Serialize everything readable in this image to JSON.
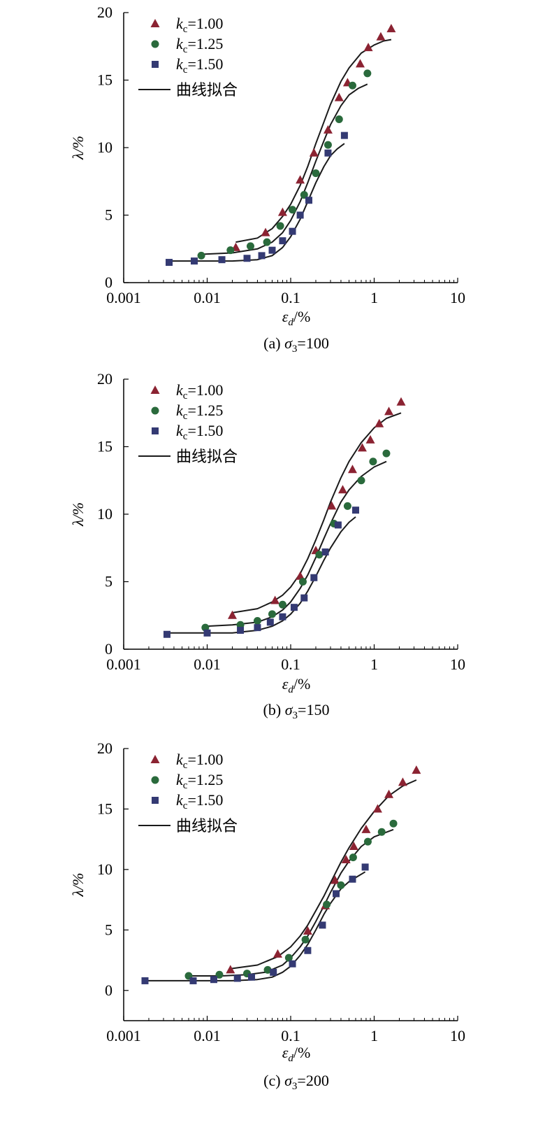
{
  "colors": {
    "series_1": "#8b2332",
    "series_2": "#2a6a3c",
    "series_3": "#343a73",
    "fit": "#1a1a1a",
    "axis": "#000000"
  },
  "chart_data": [
    {
      "type": "scatter",
      "panel": "(a)",
      "caption": {
        "prefix": "(a) ",
        "symbol": "σ",
        "sub": "3",
        "suffix": "=100"
      },
      "xlabel": {
        "symbol": "ε",
        "sub": "d",
        "unit": "/%"
      },
      "ylabel": "λ/%",
      "xscale": "log",
      "xlim": [
        0.001,
        10
      ],
      "ylim": [
        0,
        20
      ],
      "xticks": [
        "0.001",
        "0.01",
        "0.1",
        "1",
        "10"
      ],
      "yticks": [
        "0",
        "5",
        "10",
        "15",
        "20"
      ],
      "legend_placement": "top-left",
      "series": [
        {
          "name": "1.00",
          "marker": "triangle",
          "x": [
            0.022,
            0.05,
            0.08,
            0.13,
            0.19,
            0.28,
            0.38,
            0.48,
            0.68,
            0.85,
            1.2,
            1.6
          ],
          "y": [
            2.6,
            3.7,
            5.2,
            7.6,
            9.6,
            11.3,
            13.7,
            14.8,
            16.2,
            17.4,
            18.2,
            18.8
          ]
        },
        {
          "name": "1.25",
          "marker": "circle",
          "x": [
            0.0085,
            0.019,
            0.033,
            0.052,
            0.075,
            0.105,
            0.145,
            0.2,
            0.28,
            0.38,
            0.55,
            0.83
          ],
          "y": [
            2.0,
            2.4,
            2.7,
            3.0,
            4.2,
            5.4,
            6.5,
            8.1,
            10.2,
            12.1,
            14.6,
            15.5
          ]
        },
        {
          "name": "1.50",
          "marker": "square",
          "x": [
            0.0035,
            0.007,
            0.015,
            0.03,
            0.045,
            0.06,
            0.08,
            0.105,
            0.13,
            0.165,
            0.28,
            0.44
          ],
          "y": [
            1.5,
            1.6,
            1.7,
            1.8,
            2.0,
            2.4,
            3.1,
            3.8,
            5.0,
            6.1,
            9.6,
            10.9
          ]
        }
      ],
      "fits": [
        {
          "series": "1.00",
          "x": [
            0.022,
            0.04,
            0.06,
            0.08,
            0.1,
            0.13,
            0.16,
            0.2,
            0.25,
            0.3,
            0.4,
            0.5,
            0.7,
            1.0,
            1.3,
            1.6
          ],
          "y": [
            3.0,
            3.3,
            4.0,
            4.9,
            5.8,
            7.2,
            8.6,
            10.3,
            11.9,
            13.2,
            14.9,
            15.9,
            17.0,
            17.6,
            17.9,
            18.0
          ]
        },
        {
          "series": "1.25",
          "x": [
            0.0085,
            0.02,
            0.04,
            0.06,
            0.08,
            0.1,
            0.13,
            0.16,
            0.2,
            0.25,
            0.3,
            0.4,
            0.5,
            0.65,
            0.83
          ],
          "y": [
            2.1,
            2.2,
            2.5,
            3.0,
            3.7,
            4.6,
            6.0,
            7.4,
            9.0,
            10.5,
            11.7,
            13.1,
            13.9,
            14.4,
            14.7
          ]
        },
        {
          "series": "1.50",
          "x": [
            0.0035,
            0.01,
            0.02,
            0.04,
            0.06,
            0.08,
            0.1,
            0.13,
            0.16,
            0.2,
            0.25,
            0.3,
            0.36,
            0.44
          ],
          "y": [
            1.6,
            1.6,
            1.6,
            1.7,
            2.0,
            2.6,
            3.4,
            4.7,
            6.0,
            7.4,
            8.6,
            9.4,
            9.9,
            10.3
          ]
        }
      ]
    },
    {
      "type": "scatter",
      "panel": "(b)",
      "caption": {
        "prefix": "(b) ",
        "symbol": "σ",
        "sub": "3",
        "suffix": "=150"
      },
      "xlabel": {
        "symbol": "ε",
        "sub": "d",
        "unit": "/%"
      },
      "ylabel": "λ/%",
      "xscale": "log",
      "xlim": [
        0.001,
        10
      ],
      "ylim": [
        0,
        20
      ],
      "xticks": [
        "0.001",
        "0.01",
        "0.1",
        "1",
        "10"
      ],
      "yticks": [
        "0",
        "5",
        "10",
        "15",
        "20"
      ],
      "legend_placement": "top-left",
      "series": [
        {
          "name": "1.00",
          "marker": "triangle",
          "x": [
            0.02,
            0.065,
            0.13,
            0.2,
            0.31,
            0.42,
            0.55,
            0.72,
            0.9,
            1.15,
            1.5,
            2.1
          ],
          "y": [
            2.5,
            3.6,
            5.4,
            7.3,
            10.6,
            11.8,
            13.3,
            14.9,
            15.5,
            16.7,
            17.6,
            18.3
          ]
        },
        {
          "name": "1.25",
          "marker": "circle",
          "x": [
            0.0095,
            0.025,
            0.04,
            0.06,
            0.08,
            0.14,
            0.22,
            0.33,
            0.48,
            0.7,
            0.97,
            1.4
          ],
          "y": [
            1.6,
            1.8,
            2.1,
            2.6,
            3.3,
            5.0,
            7.0,
            9.3,
            10.6,
            12.5,
            13.9,
            14.5
          ]
        },
        {
          "name": "1.50",
          "marker": "square",
          "x": [
            0.0033,
            0.01,
            0.025,
            0.04,
            0.057,
            0.08,
            0.11,
            0.145,
            0.19,
            0.26,
            0.37,
            0.6
          ],
          "y": [
            1.1,
            1.2,
            1.4,
            1.6,
            2.0,
            2.4,
            3.1,
            3.8,
            5.3,
            7.2,
            9.2,
            10.3
          ]
        }
      ],
      "fits": [
        {
          "series": "1.00",
          "x": [
            0.02,
            0.04,
            0.06,
            0.08,
            0.1,
            0.13,
            0.16,
            0.2,
            0.25,
            0.3,
            0.4,
            0.5,
            0.7,
            1.0,
            1.4,
            2.1
          ],
          "y": [
            2.7,
            3.0,
            3.5,
            4.0,
            4.6,
            5.6,
            6.7,
            8.1,
            9.6,
            10.9,
            12.7,
            13.9,
            15.3,
            16.4,
            17.1,
            17.5
          ]
        },
        {
          "series": "1.25",
          "x": [
            0.0095,
            0.02,
            0.04,
            0.06,
            0.08,
            0.1,
            0.13,
            0.16,
            0.2,
            0.25,
            0.3,
            0.4,
            0.5,
            0.7,
            1.0,
            1.4
          ],
          "y": [
            1.7,
            1.8,
            2.0,
            2.4,
            2.9,
            3.5,
            4.5,
            5.5,
            6.8,
            8.2,
            9.3,
            10.9,
            11.8,
            12.8,
            13.5,
            13.9
          ]
        },
        {
          "series": "1.50",
          "x": [
            0.0033,
            0.01,
            0.02,
            0.04,
            0.06,
            0.08,
            0.1,
            0.13,
            0.16,
            0.2,
            0.25,
            0.3,
            0.4,
            0.5,
            0.6
          ],
          "y": [
            1.2,
            1.2,
            1.2,
            1.4,
            1.7,
            2.1,
            2.6,
            3.4,
            4.3,
            5.4,
            6.6,
            7.5,
            8.7,
            9.4,
            9.8
          ]
        }
      ]
    },
    {
      "type": "scatter",
      "panel": "(c)",
      "caption": {
        "prefix": "(c) ",
        "symbol": "σ",
        "sub": "3",
        "suffix": "=200"
      },
      "xlabel": {
        "symbol": "ε",
        "sub": "d",
        "unit": "/%"
      },
      "ylabel": "λ/%",
      "xscale": "log",
      "xlim": [
        0.001,
        10
      ],
      "ylim": [
        -2.5,
        20
      ],
      "xticks": [
        "0.001",
        "0.01",
        "0.1",
        "1",
        "10"
      ],
      "yticks": [
        "0",
        "5",
        "10",
        "15",
        "20"
      ],
      "legend_placement": "top-left",
      "series": [
        {
          "name": "1.00",
          "marker": "triangle",
          "x": [
            0.019,
            0.07,
            0.16,
            0.26,
            0.34,
            0.46,
            0.57,
            0.8,
            1.1,
            1.5,
            2.2,
            3.2
          ],
          "y": [
            1.7,
            3.0,
            4.9,
            7.0,
            9.1,
            10.8,
            11.9,
            13.3,
            15.0,
            16.2,
            17.2,
            18.2
          ]
        },
        {
          "name": "1.25",
          "marker": "circle",
          "x": [
            0.006,
            0.014,
            0.03,
            0.053,
            0.095,
            0.15,
            0.27,
            0.4,
            0.56,
            0.84,
            1.23,
            1.7
          ],
          "y": [
            1.2,
            1.3,
            1.4,
            1.7,
            2.7,
            4.2,
            7.1,
            8.7,
            11.0,
            12.3,
            13.1,
            13.8
          ]
        },
        {
          "name": "1.50",
          "marker": "square",
          "x": [
            0.0018,
            0.0068,
            0.012,
            0.023,
            0.034,
            0.062,
            0.105,
            0.16,
            0.24,
            0.35,
            0.55,
            0.78
          ],
          "y": [
            0.8,
            0.8,
            0.9,
            1.0,
            1.1,
            1.5,
            2.2,
            3.3,
            5.4,
            8.0,
            9.2,
            10.2
          ]
        }
      ],
      "fits": [
        {
          "series": "1.00",
          "x": [
            0.019,
            0.04,
            0.07,
            0.1,
            0.13,
            0.16,
            0.2,
            0.25,
            0.3,
            0.4,
            0.5,
            0.7,
            1.0,
            1.5,
            2.2,
            3.2
          ],
          "y": [
            1.8,
            2.1,
            2.8,
            3.6,
            4.5,
            5.4,
            6.6,
            7.8,
            8.9,
            10.6,
            11.8,
            13.4,
            14.8,
            16.1,
            16.9,
            17.4
          ]
        },
        {
          "series": "1.25",
          "x": [
            0.006,
            0.015,
            0.03,
            0.05,
            0.08,
            0.1,
            0.13,
            0.16,
            0.2,
            0.25,
            0.3,
            0.4,
            0.5,
            0.7,
            1.0,
            1.7
          ],
          "y": [
            1.2,
            1.2,
            1.3,
            1.5,
            2.1,
            2.7,
            3.6,
            4.5,
            5.7,
            7.0,
            8.1,
            9.7,
            10.7,
            11.9,
            12.7,
            13.3
          ]
        },
        {
          "series": "1.50",
          "x": [
            0.0018,
            0.005,
            0.01,
            0.02,
            0.04,
            0.06,
            0.08,
            0.1,
            0.13,
            0.16,
            0.2,
            0.25,
            0.3,
            0.4,
            0.5,
            0.78
          ],
          "y": [
            0.8,
            0.8,
            0.8,
            0.8,
            0.9,
            1.1,
            1.5,
            2.0,
            2.9,
            3.8,
            5.0,
            6.3,
            7.2,
            8.4,
            9.0,
            9.8
          ]
        }
      ]
    }
  ],
  "legend": {
    "k_symbol": "k",
    "k_sub": "c",
    "prefix": "=",
    "fit_label": "曲线拟合"
  }
}
